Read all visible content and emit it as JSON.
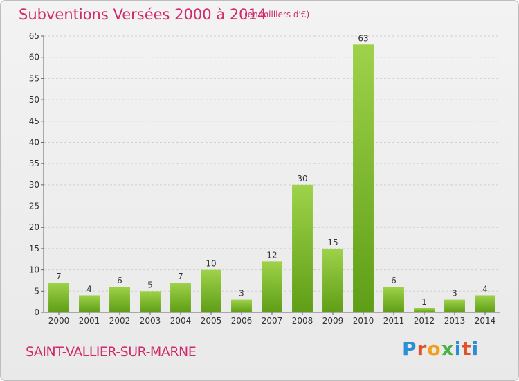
{
  "header": {
    "title": "Subventions Versées 2000 à 2014",
    "subtitle": "(en milliers d'€)"
  },
  "footer": {
    "commune": "SAINT-VALLIER-SUR-MARNE",
    "logo_letters": [
      "P",
      "r",
      "o",
      "x",
      "i",
      "t",
      "i"
    ]
  },
  "colors": {
    "title": "#d02a6a",
    "bar_top": "#9ed24a",
    "bar_bottom": "#5e9e16",
    "grid": "#cfcfcf"
  },
  "chart_data": {
    "type": "bar",
    "title": "Subventions Versées 2000 à 2014",
    "subtitle": "(en milliers d'€)",
    "categories": [
      "2000",
      "2001",
      "2002",
      "2003",
      "2004",
      "2005",
      "2006",
      "2007",
      "2008",
      "2009",
      "2010",
      "2011",
      "2012",
      "2013",
      "2014"
    ],
    "values": [
      7,
      4,
      6,
      5,
      7,
      10,
      3,
      12,
      30,
      15,
      63,
      6,
      1,
      3,
      4
    ],
    "ylim": [
      0,
      65
    ],
    "yticks": [
      0,
      5,
      10,
      15,
      20,
      25,
      30,
      35,
      40,
      45,
      50,
      55,
      60,
      65
    ],
    "grid": "horizontal dashed",
    "legend": "none"
  }
}
